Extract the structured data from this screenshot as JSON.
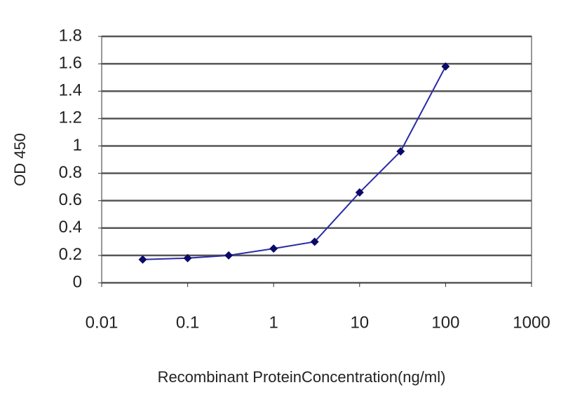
{
  "chart_data": {
    "type": "line",
    "x": [
      0.03,
      0.1,
      0.3,
      1,
      3,
      10,
      30,
      100
    ],
    "series": [
      {
        "name": "OD 450",
        "color": "#2a2aa8",
        "marker_color": "#0a0a6a",
        "values": [
          0.17,
          0.18,
          0.2,
          0.25,
          0.3,
          0.66,
          0.96,
          1.58
        ]
      }
    ],
    "xlabel": "Recombinant ProteinConcentration(ng/ml)",
    "ylabel": "OD 450",
    "xscale": "log",
    "xlim": [
      0.01,
      1000
    ],
    "xticks": [
      0.01,
      0.1,
      1,
      10,
      100,
      1000
    ],
    "ylim": [
      0,
      1.8
    ],
    "yticks": [
      0,
      0.2,
      0.4,
      0.6,
      0.8,
      1,
      1.2,
      1.4,
      1.6,
      1.8
    ],
    "grid": true
  }
}
